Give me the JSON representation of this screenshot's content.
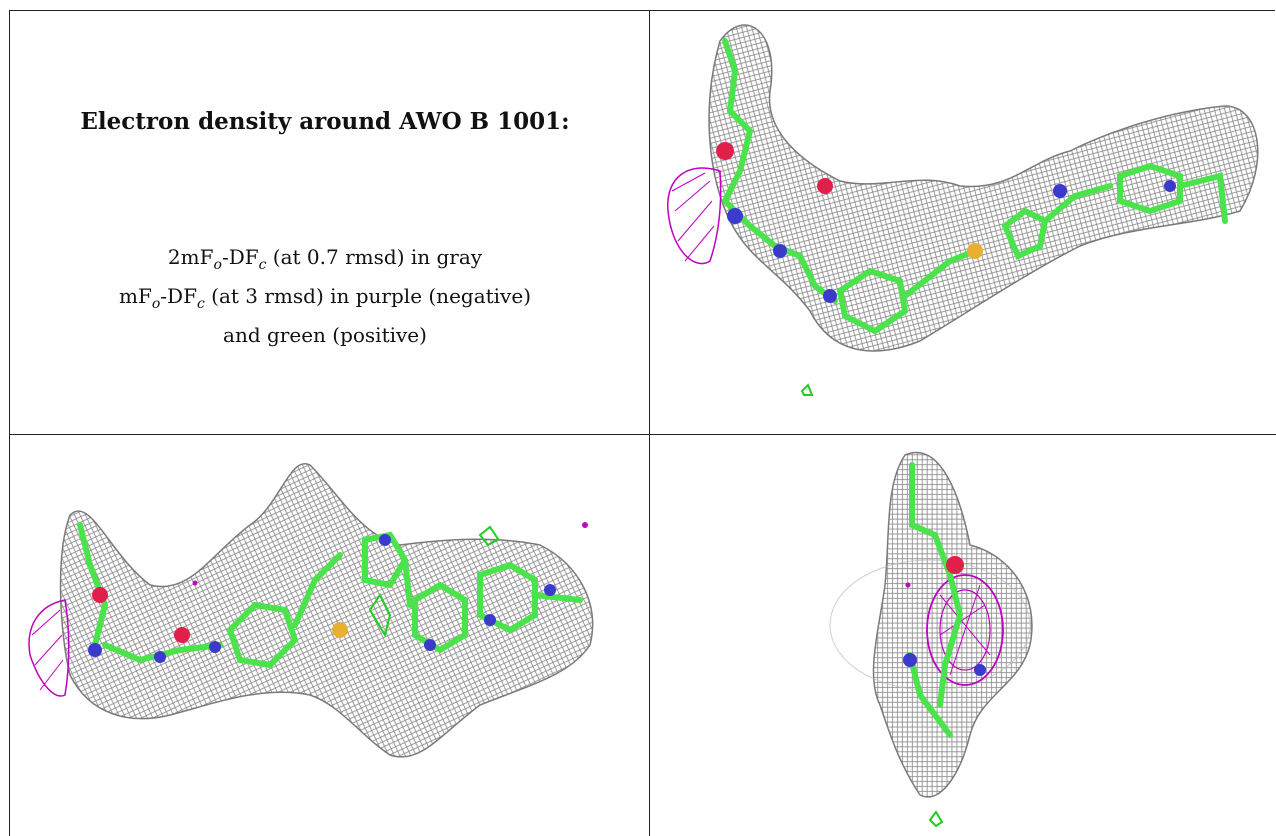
{
  "caption": {
    "title": "Electron density around AWO B 1001:",
    "line1_pre": "2mF",
    "line1_sub1": "o",
    "line1_mid": "-DF",
    "line1_sub2": "c",
    "line1_post": " (at 0.7 rmsd) in gray",
    "line2_pre": "mF",
    "line2_sub1": "o",
    "line2_mid": "-DF",
    "line2_sub2": "c",
    "line2_post": " (at 3 rmsd) in purple (negative)",
    "line3": "and green (positive)"
  },
  "colors": {
    "mesh_gray": "#8a8a8a",
    "negative_purple": "#c000c0",
    "positive_green": "#22cc22",
    "carbon_green": "#4be34b",
    "nitrogen_blue": "#3a3acc",
    "oxygen_red": "#e0204a",
    "sulfur_yellow": "#e8b030"
  },
  "panels": [
    {
      "name": "view-top-right",
      "icon": "ligand-density-view-1"
    },
    {
      "name": "view-bottom-left",
      "icon": "ligand-density-view-2"
    },
    {
      "name": "view-bottom-right",
      "icon": "ligand-density-view-3"
    }
  ]
}
